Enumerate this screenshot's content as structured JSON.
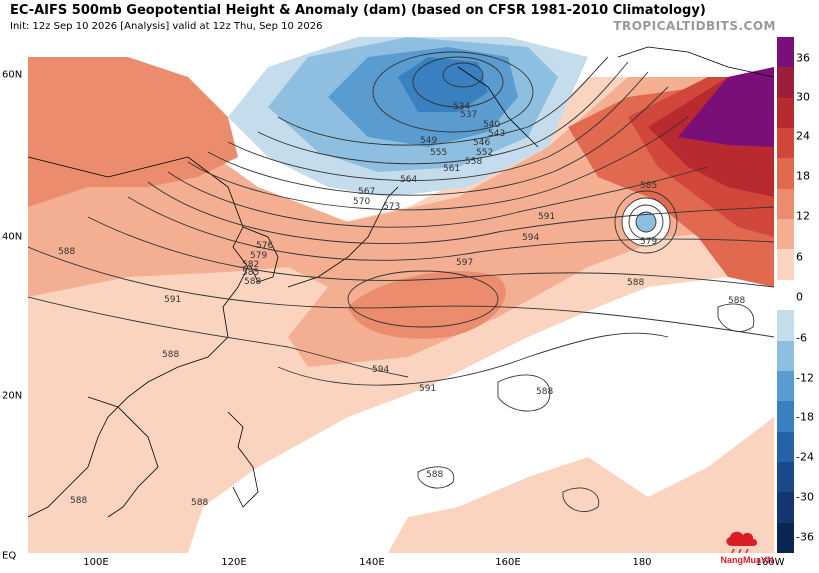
{
  "header": {
    "title": "EC-AIFS 500mb Geopotential Height & Anomaly (dam) (based on CFSR 1981-2010 Climatology)",
    "subtitle": "Init: 12z Sep 10 2026   [Analysis]   valid at 12z Thu, Sep 10 2026",
    "brand": "TROPICALTIDBITS.COM"
  },
  "axes": {
    "lat_labels": [
      "60N",
      "40N",
      "20N",
      "EQ"
    ],
    "lon_labels": [
      "100E",
      "120E",
      "140E",
      "160E",
      "180",
      "160W"
    ]
  },
  "colorbar": {
    "labels": [
      "36",
      "30",
      "24",
      "18",
      "12",
      "6",
      "0",
      "-6",
      "-12",
      "-18",
      "-24",
      "-30",
      "-36"
    ],
    "colors": [
      "#7a0f7a",
      "#9b1f3a",
      "#b82a2f",
      "#d2473c",
      "#e0694f",
      "#eb8c6e",
      "#f4af93",
      "#fbd4c0",
      "#ffffff",
      "#c4dcec",
      "#8fbfe0",
      "#5b9cd0",
      "#3a7fc0",
      "#2562a8",
      "#1a4a8c",
      "#133670",
      "#0d2552"
    ]
  },
  "contour_labels": [
    "534",
    "537",
    "540",
    "543",
    "546",
    "549",
    "552",
    "555",
    "558",
    "561",
    "564",
    "567",
    "570",
    "573",
    "576",
    "579",
    "582",
    "585",
    "588",
    "591",
    "594",
    "597",
    "585",
    "579",
    "588",
    "588",
    "588",
    "591",
    "594",
    "591",
    "588",
    "588",
    "588",
    "588",
    "588"
  ],
  "watermark": {
    "text": "NangMuaVN",
    "color": "#d81f26"
  }
}
